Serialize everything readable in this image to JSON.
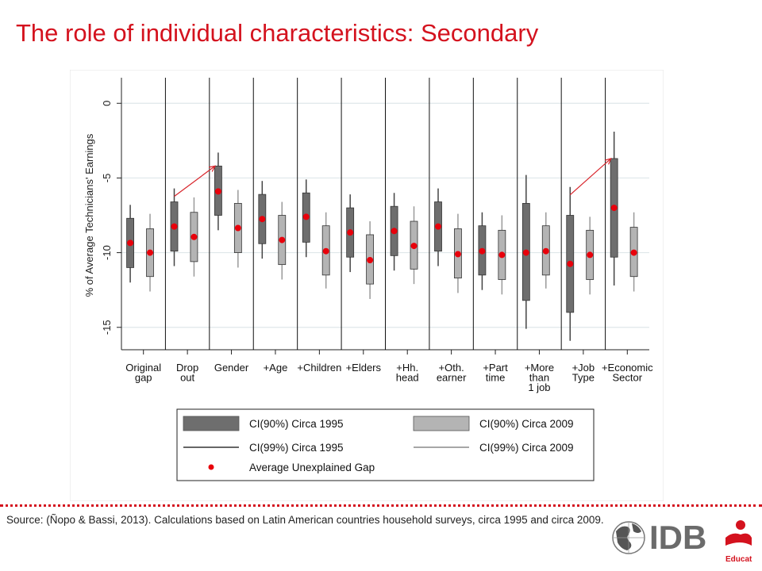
{
  "title": "The role of individual characteristics: Secondary",
  "source": "Source: (Ñopo & Bassi, 2013). Calculations based on Latin American countries household surveys, circa 1995 and circa 2009.",
  "logo": {
    "text": "IDB",
    "subtext": "Education",
    "icon": "globe-icon"
  },
  "colors": {
    "title": "#d4121e",
    "box1995": "#6e6e6e",
    "box2009": "#b4b4b4",
    "marker": "#e8000b",
    "arrow": "#d8232a"
  },
  "chart_data": {
    "type": "boxplot",
    "title": "",
    "ylabel": "% of Average Technicians' Earnings",
    "ylim": [
      -16.5,
      1.5
    ],
    "yticks": [
      0,
      -5,
      -10,
      -15
    ],
    "ytick_labels": [
      "0",
      "-5",
      "-10",
      "-15"
    ],
    "grid": true,
    "categories": [
      [
        "Original",
        "gap"
      ],
      [
        "Drop",
        "out"
      ],
      [
        "Gender"
      ],
      [
        "+Age"
      ],
      [
        "+Children"
      ],
      [
        "+Elders"
      ],
      [
        "+Hh.",
        "head"
      ],
      [
        "+Oth.",
        "earner"
      ],
      [
        "+Part",
        "time"
      ],
      [
        "+More",
        "than",
        "1 job"
      ],
      [
        "+Job",
        "Type"
      ],
      [
        "+Economic",
        "Sector"
      ]
    ],
    "series": [
      {
        "name": "Circa 1995",
        "ci90": [
          [
            -11.0,
            -7.7
          ],
          [
            -9.9,
            -6.6
          ],
          [
            -7.5,
            -4.2
          ],
          [
            -9.4,
            -6.1
          ],
          [
            -9.3,
            -6.0
          ],
          [
            -10.3,
            -7.0
          ],
          [
            -10.2,
            -6.9
          ],
          [
            -9.9,
            -6.6
          ],
          [
            -11.5,
            -8.2
          ],
          [
            -13.2,
            -6.7
          ],
          [
            -14.0,
            -7.5
          ],
          [
            -10.3,
            -3.7
          ]
        ],
        "ci99": [
          [
            -12.0,
            -6.8
          ],
          [
            -10.9,
            -5.7
          ],
          [
            -8.5,
            -3.3
          ],
          [
            -10.4,
            -5.2
          ],
          [
            -10.3,
            -5.1
          ],
          [
            -11.3,
            -6.1
          ],
          [
            -11.2,
            -6.0
          ],
          [
            -10.9,
            -5.7
          ],
          [
            -12.5,
            -7.3
          ],
          [
            -15.1,
            -4.8
          ],
          [
            -15.9,
            -5.6
          ],
          [
            -12.2,
            -1.9
          ]
        ],
        "gap": [
          -9.35,
          -8.25,
          -5.9,
          -7.75,
          -7.6,
          -8.65,
          -8.55,
          -8.25,
          -9.9,
          -10.0,
          -10.75,
          -7.0
        ]
      },
      {
        "name": "Circa 2009",
        "ci90": [
          [
            -11.6,
            -8.4
          ],
          [
            -10.6,
            -7.3
          ],
          [
            -10.0,
            -6.7
          ],
          [
            -10.8,
            -7.5
          ],
          [
            -11.5,
            -8.2
          ],
          [
            -12.1,
            -8.8
          ],
          [
            -11.1,
            -7.9
          ],
          [
            -11.7,
            -8.4
          ],
          [
            -11.8,
            -8.5
          ],
          [
            -11.5,
            -8.2
          ],
          [
            -11.8,
            -8.5
          ],
          [
            -11.6,
            -8.3
          ]
        ],
        "ci99": [
          [
            -12.6,
            -7.4
          ],
          [
            -11.6,
            -6.3
          ],
          [
            -11.0,
            -5.8
          ],
          [
            -11.8,
            -6.6
          ],
          [
            -12.4,
            -7.3
          ],
          [
            -13.1,
            -7.9
          ],
          [
            -12.1,
            -6.9
          ],
          [
            -12.7,
            -7.4
          ],
          [
            -12.8,
            -7.5
          ],
          [
            -12.4,
            -7.3
          ],
          [
            -12.8,
            -7.6
          ],
          [
            -12.6,
            -7.3
          ]
        ],
        "gap": [
          -10.0,
          -8.95,
          -8.35,
          -9.15,
          -9.9,
          -10.5,
          -9.55,
          -10.1,
          -10.15,
          -9.9,
          -10.15,
          -10.0
        ]
      }
    ],
    "arrows": [
      {
        "from_group": 1,
        "from_series": 0,
        "to_group": 2,
        "to_series": 0
      },
      {
        "from_group": 10,
        "from_series": 0,
        "to_group": 11,
        "to_series": 0
      }
    ],
    "legend": {
      "position": "bottom",
      "items": [
        {
          "label": "CI(90%) Circa 1995",
          "kind": "box",
          "color": "#6e6e6e"
        },
        {
          "label": "CI(90%) Circa 2009",
          "kind": "box",
          "color": "#b4b4b4"
        },
        {
          "label": "CI(99%) Circa 1995",
          "kind": "line",
          "color": "#333333"
        },
        {
          "label": "CI(99%) Circa 2009",
          "kind": "line",
          "color": "#888888"
        },
        {
          "label": "Average Unexplained Gap",
          "kind": "dot",
          "color": "#e8000b"
        }
      ]
    }
  }
}
